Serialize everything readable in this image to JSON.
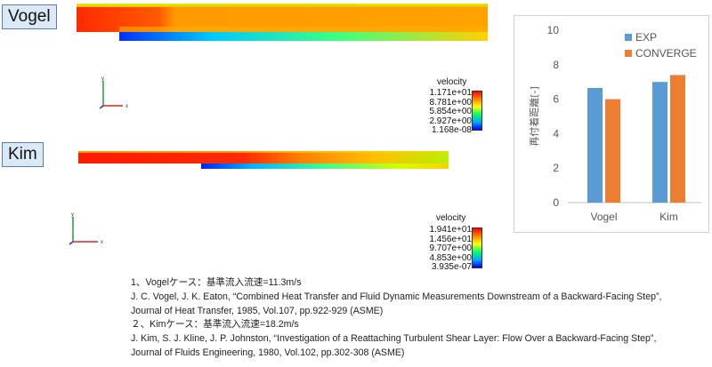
{
  "cases": {
    "vogel": {
      "label": "Vogel"
    },
    "kim": {
      "label": "Kim"
    }
  },
  "axis_icons": {
    "y": "y",
    "x": "x",
    "z": "z"
  },
  "legends": {
    "vogel": {
      "title": "velocity",
      "ticks": [
        "1.171e+01",
        "8.781e+00",
        "5.854e+00",
        "2.927e+00",
        "1.168e-08"
      ]
    },
    "kim": {
      "title": "velocity",
      "ticks": [
        "1.941e+01",
        "1.456e+01",
        "9.707e+00",
        "4.853e+00",
        "3.935e-07"
      ]
    }
  },
  "chart_data": {
    "type": "bar",
    "categories": [
      "Vogel",
      "Kim"
    ],
    "series": [
      {
        "name": "EXP",
        "values": [
          6.65,
          7.0
        ],
        "color": "#5b9bd5"
      },
      {
        "name": "CONVERGE",
        "values": [
          6.0,
          7.4
        ],
        "color": "#ed7d31"
      }
    ],
    "ylabel": "再付着距離[-]",
    "ylim": [
      0,
      10
    ],
    "yticks": [
      "0",
      "2",
      "4",
      "6",
      "8",
      "10"
    ],
    "legend_position": "top-right",
    "grid": false
  },
  "references": [
    "1、Vogelケース：基準流入流速=11.3m/s",
    "J. C. Vogel, J. K. Eaton, “Combined Heat Transfer and Fluid Dynamic Measurements Downstream of a Backward-Facing Step”,",
    "Journal of Heat Transfer, 1985, Vol.107, pp.922-929 (ASME)",
    "２、Kimケース：基準流入流速=18.2m/s",
    "J. Kim, S. J. Kline, J. P. Johnston, “Investigation of a Reattaching Turbulent Shear Layer: Flow Over a Backward-Facing Step”,",
    "Journal of Fluids Engineering, 1980, Vol.102, pp.302-308 (ASME)"
  ]
}
